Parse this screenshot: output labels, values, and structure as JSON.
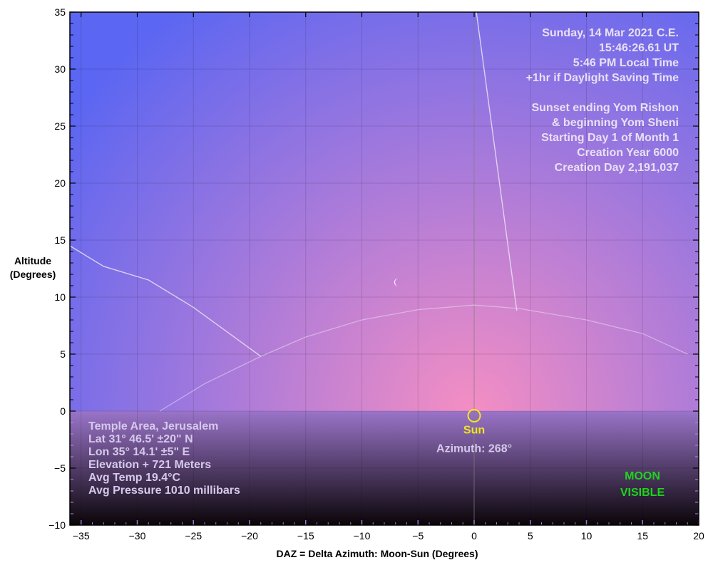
{
  "chart_data": {
    "type": "sky-chart",
    "xlabel": "DAZ = Delta Azimuth: Moon-Sun (Degrees)",
    "ylabel_lines": [
      "Altitude",
      "(Degrees)"
    ],
    "xlim": [
      -36,
      20
    ],
    "ylim": [
      -10,
      35
    ],
    "x_ticks": [
      -35,
      -30,
      -25,
      -20,
      -15,
      -10,
      -5,
      0,
      5,
      10,
      15,
      20
    ],
    "y_ticks": [
      35,
      30,
      25,
      20,
      15,
      10,
      5,
      0,
      -5,
      -10
    ],
    "x_tick_labels": [
      "−35",
      "−30",
      "−25",
      "−20",
      "−15",
      "−10",
      "−5",
      "0",
      "5",
      "10",
      "15",
      "20"
    ],
    "y_tick_labels": [
      "35",
      "30",
      "25",
      "20",
      "15",
      "10",
      "5",
      "0",
      "−5",
      "−10"
    ],
    "horizon_altitude": 0,
    "ecliptic_arc": [
      [
        -28,
        0
      ],
      [
        -24,
        2.4
      ],
      [
        -19,
        4.8
      ],
      [
        -15,
        6.5
      ],
      [
        -10,
        8.0
      ],
      [
        -5,
        8.9
      ],
      [
        0,
        9.3
      ],
      [
        4,
        9.0
      ],
      [
        10,
        8.0
      ],
      [
        15,
        6.8
      ],
      [
        19,
        5.0
      ]
    ],
    "moon_path_left": [
      [
        -36,
        14.5
      ],
      [
        -33,
        12.7
      ],
      [
        -29,
        11.5
      ],
      [
        -25,
        9.1
      ],
      [
        -19,
        4.8
      ]
    ],
    "moon_path_right": [
      [
        0.2,
        35
      ],
      [
        3.8,
        8.8
      ]
    ],
    "moon": {
      "daz": -6.8,
      "alt": 11.3
    },
    "sun": {
      "daz": 0,
      "alt": -0.4,
      "label": "Sun",
      "azimuth_label": "Azimuth: 268°"
    },
    "colors": {
      "sky_top_left": "#5b66f2",
      "sky_bottom": "#f48ec3",
      "below_horizon_top": "#9a74c9",
      "below_horizon_bottom": "#0a0508",
      "info_text": "#e8e0f4",
      "location_text": "#d6c9ec",
      "sun": "#f2e61c",
      "moon_visible": "#1ed31e",
      "curve": "#e7dbf2"
    }
  },
  "date_info": [
    "Sunday, 14 Mar 2021 C.E.",
    "15:46:26.61 UT",
    "5:46 PM Local Time",
    "+1hr if Daylight Saving Time",
    "",
    "Sunset ending Yom Rishon",
    "& beginning Yom Sheni",
    "Starting Day 1 of Month 1",
    "Creation Year 6000",
    "Creation Day 2,191,037"
  ],
  "location_info": [
    "Temple Area, Jerusalem",
    "Lat 31° 46.5' ±20\" N",
    "Lon 35° 14.1' ±5\" E",
    "Elevation + 721 Meters",
    "Avg Temp 19.4°C",
    "Avg Pressure 1010 millibars"
  ],
  "status_lines": [
    "MOON",
    "VISIBLE"
  ]
}
